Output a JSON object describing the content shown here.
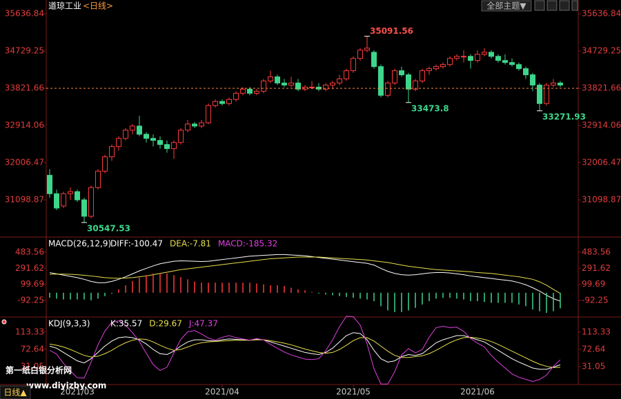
{
  "chart_data": [
    {
      "type": "candlestick",
      "title": "道琼工业",
      "subtitle": "<日线>",
      "categories": [
        null,
        null,
        null,
        null,
        "2021/03",
        null,
        null,
        null,
        null,
        null,
        null,
        null,
        null,
        null,
        null,
        null,
        null,
        null,
        null,
        null,
        null,
        null,
        null,
        null,
        null,
        "2021/04",
        null,
        null,
        null,
        null,
        null,
        null,
        null,
        null,
        null,
        null,
        null,
        null,
        null,
        null,
        null,
        null,
        null,
        null,
        "2021/05",
        null,
        null,
        null,
        null,
        null,
        null,
        null,
        null,
        null,
        null,
        null,
        null,
        null,
        null,
        null,
        null,
        null,
        "2021/06",
        null,
        null,
        null,
        null,
        null,
        null,
        null,
        null,
        null,
        null,
        null,
        null
      ],
      "open": [
        31700,
        31250,
        30950,
        31250,
        31300,
        31100,
        30700,
        31400,
        31800,
        32150,
        32400,
        32600,
        32800,
        32900,
        32700,
        32600,
        32550,
        32450,
        32350,
        32500,
        32800,
        32950,
        32900,
        32980,
        33400,
        33500,
        33450,
        33550,
        33700,
        33800,
        33700,
        33750,
        34000,
        34100,
        33950,
        33900,
        33950,
        33800,
        33850,
        33850,
        33800,
        33900,
        33950,
        34050,
        34250,
        34550,
        34750,
        34700,
        34350,
        33650,
        33950,
        34250,
        34150,
        33800,
        34000,
        34250,
        34300,
        34350,
        34400,
        34550,
        34600,
        34600,
        34500,
        34650,
        34700,
        34600,
        34500,
        34450,
        34400,
        34300,
        34150,
        33900,
        33450,
        33900,
        33950
      ],
      "high": [
        31850,
        31350,
        31300,
        31400,
        31350,
        31150,
        31450,
        31850,
        32200,
        32450,
        32650,
        32850,
        32950,
        33150,
        32750,
        32700,
        32650,
        32550,
        32550,
        32850,
        33050,
        33000,
        33050,
        33450,
        33550,
        33550,
        33600,
        33750,
        33850,
        33850,
        33800,
        34050,
        34250,
        34150,
        34050,
        34100,
        34050,
        33900,
        34000,
        33950,
        33950,
        34000,
        34150,
        34300,
        34600,
        34800,
        35091.56,
        34750,
        34400,
        34000,
        34300,
        34350,
        34200,
        34050,
        34300,
        34350,
        34400,
        34450,
        34600,
        34650,
        34750,
        34650,
        34750,
        34800,
        34750,
        34650,
        34650,
        34550,
        34450,
        34350,
        34200,
        33950,
        33950,
        34050,
        34000
      ],
      "low": [
        31150,
        30850,
        30900,
        31100,
        31050,
        30547.53,
        30650,
        31350,
        31750,
        32050,
        32300,
        32550,
        32700,
        32650,
        32500,
        32400,
        32350,
        32250,
        32100,
        32450,
        32750,
        32850,
        32850,
        32950,
        33350,
        33400,
        33400,
        33500,
        33650,
        33650,
        33650,
        33700,
        33950,
        33900,
        33850,
        33850,
        33750,
        33750,
        33800,
        33750,
        33750,
        33800,
        33900,
        34000,
        34200,
        34500,
        34700,
        34300,
        33600,
        33600,
        33900,
        34100,
        33473.8,
        33750,
        33950,
        34150,
        34250,
        34300,
        34350,
        34500,
        34450,
        34300,
        34450,
        34600,
        34550,
        34450,
        34400,
        34350,
        34250,
        34050,
        33750,
        33271.93,
        33400,
        33850,
        33850
      ],
      "close": [
        31250,
        30900,
        31250,
        31300,
        31100,
        30700,
        31400,
        31800,
        32150,
        32400,
        32600,
        32800,
        32900,
        32700,
        32600,
        32550,
        32450,
        32350,
        32500,
        32800,
        32950,
        32900,
        32980,
        33400,
        33500,
        33450,
        33550,
        33700,
        33800,
        33700,
        33750,
        34000,
        34100,
        33950,
        33900,
        33950,
        33800,
        33850,
        33850,
        33800,
        33900,
        33950,
        34050,
        34250,
        34550,
        34750,
        34800,
        34350,
        33650,
        33950,
        34250,
        34150,
        33800,
        34000,
        34250,
        34300,
        34350,
        34400,
        34550,
        34600,
        34600,
        34500,
        34650,
        34700,
        34600,
        34500,
        34450,
        34400,
        34300,
        34150,
        33900,
        33450,
        33900,
        33950,
        33900
      ],
      "up_color": "#ff3b3b",
      "down_color": "#3dd68c",
      "ylim": [
        30260,
        35840
      ],
      "yticks": [
        35636.84,
        34729.25,
        33821.66,
        32914.06,
        32006.47,
        31098.87
      ],
      "reference_line": 33821.66,
      "annotations": [
        {
          "index": 46,
          "value": 35091.56,
          "color": "#ff4d4d"
        },
        {
          "index": 52,
          "value": 33473.8,
          "color": "#3dd68c"
        },
        {
          "index": 5,
          "value": 30547.53,
          "color": "#3dd68c"
        },
        {
          "index": 71,
          "value": 33271.93,
          "color": "#3dd68c"
        }
      ]
    },
    {
      "type": "combo",
      "title": "MACD(26,12,9)",
      "ylim": [
        -272,
        630
      ],
      "yticks": [
        483.56,
        291.62,
        99.69,
        -92.25
      ],
      "series": [
        {
          "name": "DIFF:-100.47",
          "type": "line",
          "color": "#ffffff",
          "values": [
            240,
            225,
            210,
            195,
            180,
            160,
            135,
            120,
            120,
            135,
            160,
            190,
            225,
            260,
            290,
            320,
            345,
            360,
            375,
            380,
            378,
            375,
            372,
            375,
            385,
            395,
            405,
            415,
            425,
            435,
            440,
            445,
            450,
            455,
            455,
            450,
            445,
            440,
            430,
            420,
            410,
            400,
            390,
            380,
            370,
            360,
            350,
            330,
            290,
            255,
            230,
            215,
            210,
            215,
            225,
            235,
            240,
            240,
            235,
            225,
            215,
            200,
            190,
            180,
            170,
            160,
            150,
            140,
            120,
            95,
            60,
            20,
            -30,
            -70,
            -100.47
          ]
        },
        {
          "name": "DEA:-7.81",
          "type": "line",
          "color": "#e8e04a",
          "values": [
            220,
            222,
            222,
            220,
            215,
            208,
            200,
            190,
            180,
            175,
            172,
            175,
            180,
            190,
            200,
            215,
            230,
            245,
            260,
            275,
            285,
            295,
            305,
            315,
            325,
            335,
            345,
            355,
            365,
            375,
            385,
            395,
            405,
            410,
            415,
            420,
            425,
            425,
            425,
            425,
            420,
            415,
            410,
            405,
            400,
            395,
            390,
            380,
            370,
            360,
            345,
            330,
            315,
            305,
            295,
            285,
            275,
            270,
            265,
            260,
            255,
            250,
            240,
            235,
            230,
            220,
            210,
            200,
            190,
            175,
            160,
            130,
            90,
            40,
            -7.81
          ]
        },
        {
          "name": "MACD:-185.32",
          "type": "bar",
          "color": "#e040e0",
          "up_color": "#ff3b3b",
          "down_color": "#3dd68c",
          "values": [
            -60,
            -70,
            -80,
            -80,
            -80,
            -80,
            -90,
            -70,
            -40,
            -10,
            40,
            90,
            140,
            180,
            210,
            230,
            230,
            230,
            210,
            186,
            160,
            134,
            120,
            120,
            120,
            120,
            120,
            120,
            120,
            120,
            110,
            100,
            90,
            90,
            80,
            60,
            40,
            30,
            10,
            -10,
            -20,
            -30,
            -40,
            -50,
            -60,
            -70,
            -80,
            -100,
            -160,
            -210,
            -230,
            -230,
            -210,
            -180,
            -140,
            -100,
            -70,
            -60,
            -60,
            -70,
            -80,
            -100,
            -100,
            -110,
            -120,
            -120,
            -120,
            -120,
            -140,
            -160,
            -200,
            -220,
            -240,
            -220,
            -185.32
          ]
        }
      ]
    },
    {
      "type": "line",
      "title": "KDJ(9,3,3)",
      "ylim": [
        -11.3,
        144.3
      ],
      "yticks": [
        113.33,
        72.64,
        31.05
      ],
      "series": [
        {
          "name": "K:35.57",
          "color": "#ffffff",
          "values": [
            80,
            75,
            65,
            55,
            45,
            40,
            50,
            65,
            80,
            92,
            100,
            102,
            100,
            95,
            85,
            72,
            62,
            60,
            68,
            80,
            90,
            95,
            95,
            93,
            92,
            95,
            97,
            96,
            95,
            94,
            96,
            95,
            90,
            85,
            80,
            75,
            70,
            65,
            62,
            60,
            65,
            75,
            90,
            105,
            112,
            110,
            95,
            70,
            50,
            42,
            45,
            55,
            60,
            58,
            62,
            75,
            88,
            95,
            100,
            105,
            105,
            100,
            95,
            90,
            80,
            70,
            60,
            50,
            42,
            35,
            28,
            25,
            25,
            30,
            35.57
          ]
        },
        {
          "name": "D:29.67",
          "color": "#e8e04a",
          "values": [
            85,
            82,
            78,
            72,
            65,
            58,
            54,
            56,
            62,
            70,
            80,
            88,
            94,
            97,
            96,
            90,
            82,
            75,
            70,
            72,
            78,
            84,
            88,
            90,
            91,
            92,
            93,
            94,
            94,
            94,
            95,
            95,
            93,
            90,
            87,
            83,
            78,
            73,
            69,
            65,
            63,
            65,
            72,
            82,
            93,
            100,
            100,
            92,
            80,
            68,
            58,
            53,
            53,
            55,
            57,
            62,
            70,
            79,
            88,
            95,
            100,
            101,
            99,
            96,
            91,
            84,
            76,
            68,
            60,
            52,
            44,
            37,
            32,
            29,
            29.67
          ]
        },
        {
          "name": "J:47.37",
          "color": "#e040e0",
          "values": [
            70,
            61,
            39,
            21,
            5,
            4,
            42,
            83,
            116,
            136,
            140,
            130,
            112,
            91,
            63,
            36,
            22,
            30,
            64,
            96,
            114,
            117,
            109,
            99,
            94,
            101,
            105,
            100,
            97,
            94,
            98,
            95,
            84,
            75,
            66,
            59,
            54,
            49,
            48,
            50,
            69,
            95,
            126,
            151,
            150,
            130,
            85,
            26,
            -10,
            -10,
            19,
            59,
            74,
            64,
            72,
            101,
            124,
            127,
            124,
            125,
            115,
            98,
            87,
            78,
            58,
            42,
            28,
            14,
            6,
            1,
            -4,
            1,
            11,
            32,
            47.37
          ]
        }
      ]
    }
  ],
  "ui": {
    "theme_button": "全部主题▼",
    "period_button": "日线▲",
    "watermark": [
      "第一纸白银分析网",
      "www.diyizby.com"
    ]
  }
}
